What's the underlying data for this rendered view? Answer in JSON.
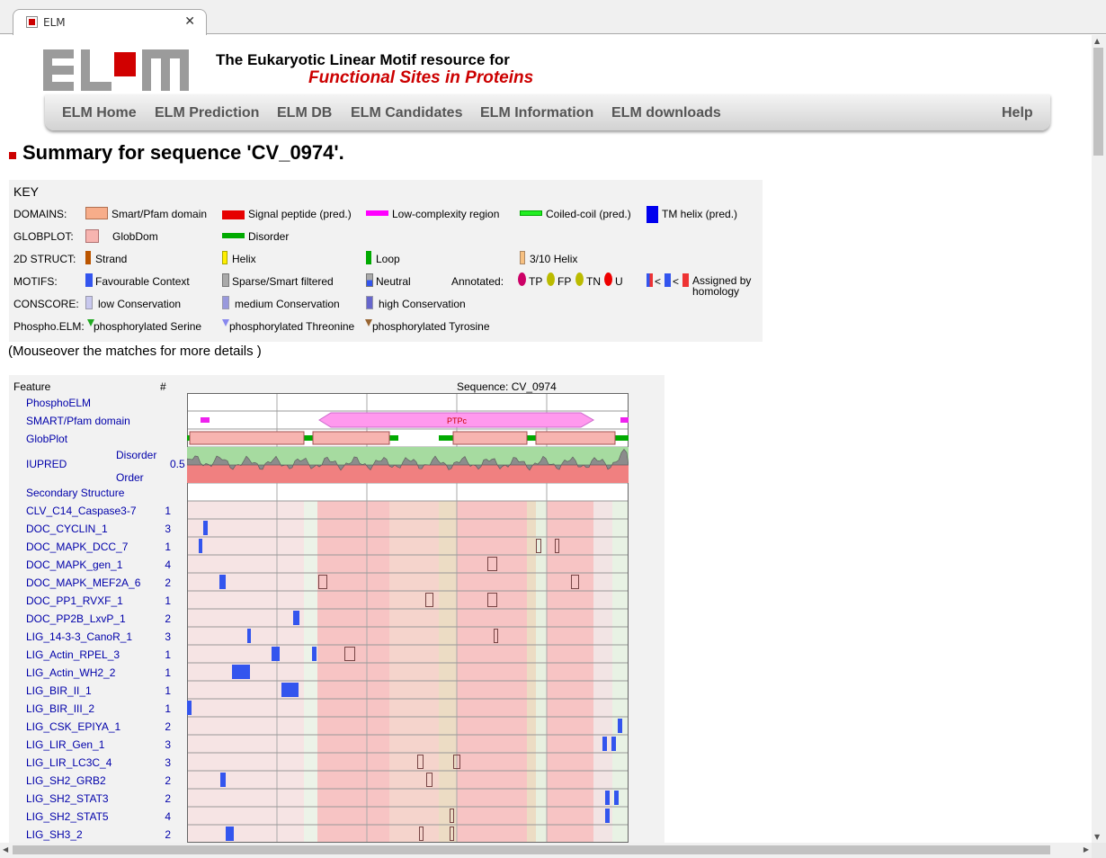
{
  "browser": {
    "tab_title": "ELM",
    "close_glyph": "✕"
  },
  "header": {
    "tagline_1": "The Eukaryotic Linear Motif resource for",
    "tagline_2": "Functional Sites in Proteins",
    "logo_text": "ELM"
  },
  "nav": {
    "items": [
      "ELM Home",
      "ELM Prediction",
      "ELM DB",
      "ELM Candidates",
      "ELM Information",
      "ELM downloads"
    ],
    "help": "Help"
  },
  "page": {
    "heading": "Summary for sequence 'CV_0974'.",
    "mouseover_note": "(Mouseover the matches for more details )"
  },
  "key": {
    "title": "KEY",
    "domains_label": "DOMAINS:",
    "domains": [
      "Smart/Pfam domain",
      "Signal peptide (pred.)",
      "Low-complexity region",
      "Coiled-coil (pred.)",
      "TM helix (pred.)"
    ],
    "globplot_label": "GLOBPLOT:",
    "globplot": [
      "GlobDom",
      "Disorder"
    ],
    "struct_label": "2D STRUCT:",
    "struct": [
      "Strand",
      "Helix",
      "Loop",
      "3/10 Helix"
    ],
    "motifs_label": "MOTIFS:",
    "motifs": [
      "Favourable Context",
      "Sparse/Smart filtered",
      "Neutral"
    ],
    "annotated_label": "Annotated:",
    "annotated": [
      "TP",
      "FP",
      "TN",
      "U"
    ],
    "homology": [
      "<",
      "<",
      "Assigned by",
      "homology"
    ],
    "conscore_label": "CONSCORE:",
    "conscore": [
      "low Conservation",
      "medium Conservation",
      "high Conservation"
    ],
    "phospho_label": "Phospho.ELM:",
    "phospho": [
      "phosphorylated Serine",
      "phosphorylated Threonine",
      "phosphorylated Tyrosine"
    ],
    "colors": {
      "smart": "#f7ad8a",
      "signal": "#e60000",
      "lowcomplex": "#ff00ff",
      "coiled": "#22ee22",
      "tm": "#0000ee",
      "globdom": "#f7b4b0",
      "disorder": "#00aa00",
      "strand": "#bb5500",
      "helix": "#ffee00",
      "loop": "#00aa00",
      "helix310": "#f7c080",
      "favourable": "#3355ee",
      "sparse": "#aaaaaa",
      "neutral": "#ffffff",
      "tp": "#cc0066",
      "fp": "#bbbb00",
      "tn": "#bbbb00",
      "u": "#ee0000",
      "low_cons": "#c8c8ee",
      "med_cons": "#9999dd",
      "high_cons": "#6666cc"
    }
  },
  "graphic": {
    "feature_header": "Feature",
    "count_header": "#",
    "sequence_header": "Sequence: CV_0974",
    "iupred_label": "IUPRED",
    "disorder_label": "Disorder",
    "order_label": "Order",
    "iupred_mid": "0.5",
    "domain_label": "PTPc",
    "tracks": [
      {
        "name": "PhosphoELM",
        "count": ""
      },
      {
        "name": "SMART/Pfam domain",
        "count": ""
      },
      {
        "name": "GlobPlot",
        "count": ""
      }
    ],
    "secondary": "Secondary Structure",
    "motifs": [
      {
        "name": "CLV_C14_Caspase3-7",
        "count": "1"
      },
      {
        "name": "DOC_CYCLIN_1",
        "count": "3"
      },
      {
        "name": "DOC_MAPK_DCC_7",
        "count": "1"
      },
      {
        "name": "DOC_MAPK_gen_1",
        "count": "4"
      },
      {
        "name": "DOC_MAPK_MEF2A_6",
        "count": "2"
      },
      {
        "name": "DOC_PP1_RVXF_1",
        "count": "1"
      },
      {
        "name": "DOC_PP2B_LxvP_1",
        "count": "2"
      },
      {
        "name": "LIG_14-3-3_CanoR_1",
        "count": "3"
      },
      {
        "name": "LIG_Actin_RPEL_3",
        "count": "1"
      },
      {
        "name": "LIG_Actin_WH2_2",
        "count": "1"
      },
      {
        "name": "LIG_BIR_II_1",
        "count": "1"
      },
      {
        "name": "LIG_BIR_III_2",
        "count": "1"
      },
      {
        "name": "LIG_CSK_EPIYA_1",
        "count": "2"
      },
      {
        "name": "LIG_LIR_Gen_1",
        "count": "3"
      },
      {
        "name": "LIG_LIR_LC3C_4",
        "count": "3"
      },
      {
        "name": "LIG_SH2_GRB2",
        "count": "2"
      },
      {
        "name": "LIG_SH2_STAT3",
        "count": "2"
      },
      {
        "name": "LIG_SH2_STAT5",
        "count": "4"
      },
      {
        "name": "LIG_SH3_2",
        "count": "2"
      }
    ]
  }
}
